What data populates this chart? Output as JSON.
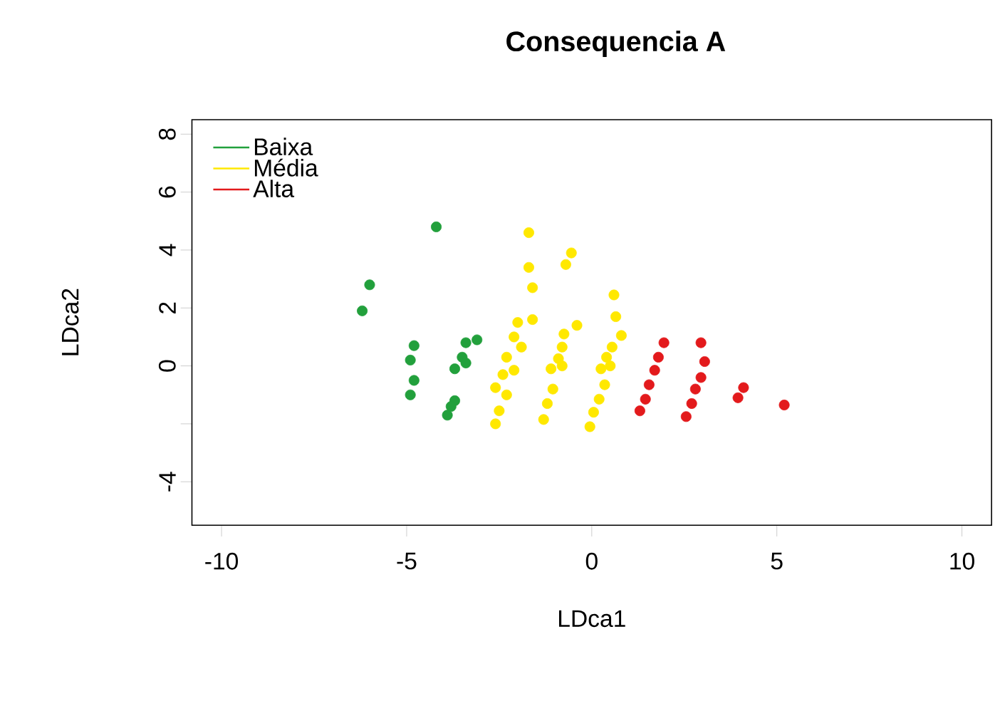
{
  "chart_data": {
    "type": "scatter",
    "title": "Consequencia A",
    "xlabel": "LDca1",
    "ylabel": "LDca2",
    "xlim": [
      -10.8,
      10.8
    ],
    "ylim": [
      -5.5,
      8.5
    ],
    "xticks": [
      -10,
      -5,
      0,
      5,
      10
    ],
    "yticks": [
      {
        "value": -4,
        "label": "-4"
      },
      {
        "value": -2,
        "label": null
      },
      0,
      2,
      4,
      6,
      8
    ],
    "legend": "top left",
    "marker": "circle",
    "series": [
      {
        "name": "Baixa",
        "color": "#22a03c",
        "x": [
          -4.2,
          -6.0,
          -6.2,
          -4.8,
          -4.9,
          -4.8,
          -4.9,
          -3.1,
          -3.4,
          -3.5,
          -3.7,
          -3.4,
          -3.7,
          -3.9,
          -3.8
        ],
        "values": [
          4.8,
          2.8,
          1.9,
          0.7,
          0.2,
          -0.5,
          -1.0,
          0.9,
          0.8,
          0.3,
          -0.1,
          0.1,
          -1.2,
          -1.7,
          -1.4
        ]
      },
      {
        "name": "Média",
        "color": "#ffe800",
        "x": [
          -1.7,
          -1.7,
          -1.6,
          -1.6,
          -2.0,
          -2.1,
          -1.9,
          -2.3,
          -2.1,
          -2.4,
          -2.6,
          -2.3,
          -2.5,
          -2.6,
          -0.55,
          -0.7,
          -0.4,
          -0.75,
          -0.8,
          -0.9,
          -1.1,
          -0.8,
          -1.05,
          -1.2,
          -1.3,
          0.6,
          0.65,
          0.8,
          0.55,
          0.4,
          0.5,
          0.25,
          0.35,
          0.2,
          0.05,
          -0.05
        ],
        "values": [
          4.6,
          3.4,
          2.7,
          1.6,
          1.5,
          1.0,
          0.65,
          0.3,
          -0.15,
          -0.3,
          -0.75,
          -1.0,
          -1.55,
          -2.0,
          3.9,
          3.5,
          1.4,
          1.1,
          0.65,
          0.25,
          -0.1,
          0.0,
          -0.8,
          -1.3,
          -1.85,
          2.45,
          1.7,
          1.05,
          0.65,
          0.3,
          0.0,
          -0.1,
          -0.65,
          -1.15,
          -1.6,
          -2.1
        ]
      },
      {
        "name": "Alta",
        "color": "#e31a1c",
        "x": [
          1.95,
          1.8,
          1.7,
          1.55,
          1.45,
          1.3,
          2.95,
          3.05,
          2.95,
          2.8,
          2.7,
          2.55,
          4.1,
          3.95,
          5.2
        ],
        "values": [
          0.8,
          0.3,
          -0.15,
          -0.65,
          -1.15,
          -1.55,
          0.8,
          0.15,
          -0.4,
          -0.8,
          -1.3,
          -1.75,
          -0.75,
          -1.1,
          -1.35
        ]
      }
    ]
  }
}
